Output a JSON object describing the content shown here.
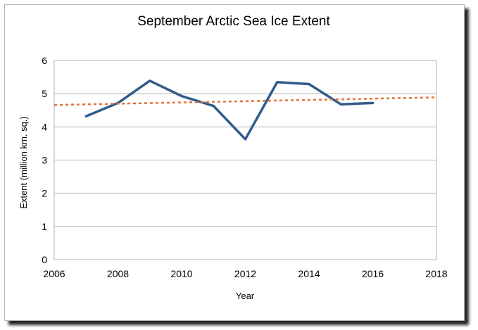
{
  "chart_data": {
    "type": "line",
    "title": "September Arctic Sea Ice Extent",
    "xlabel": "Year",
    "ylabel": "Extent (million km. sq.)",
    "xlim": [
      2006,
      2018
    ],
    "ylim": [
      0,
      6
    ],
    "xticks": [
      2006,
      2008,
      2010,
      2012,
      2014,
      2016,
      2018
    ],
    "yticks": [
      0,
      1,
      2,
      3,
      4,
      5,
      6
    ],
    "grid": "horizontal",
    "legend": "none",
    "series": [
      {
        "color": "#2f5b8a",
        "x": [
          2007,
          2008,
          2009,
          2010,
          2011,
          2012,
          2013,
          2014,
          2015,
          2016
        ],
        "y": [
          4.32,
          4.72,
          5.39,
          4.93,
          4.63,
          3.63,
          5.35,
          5.29,
          4.68,
          4.72
        ]
      },
      {
        "color": "#e0703a",
        "style": "dashed",
        "x": [
          2006,
          2018
        ],
        "y": [
          4.66,
          4.89
        ]
      }
    ]
  }
}
